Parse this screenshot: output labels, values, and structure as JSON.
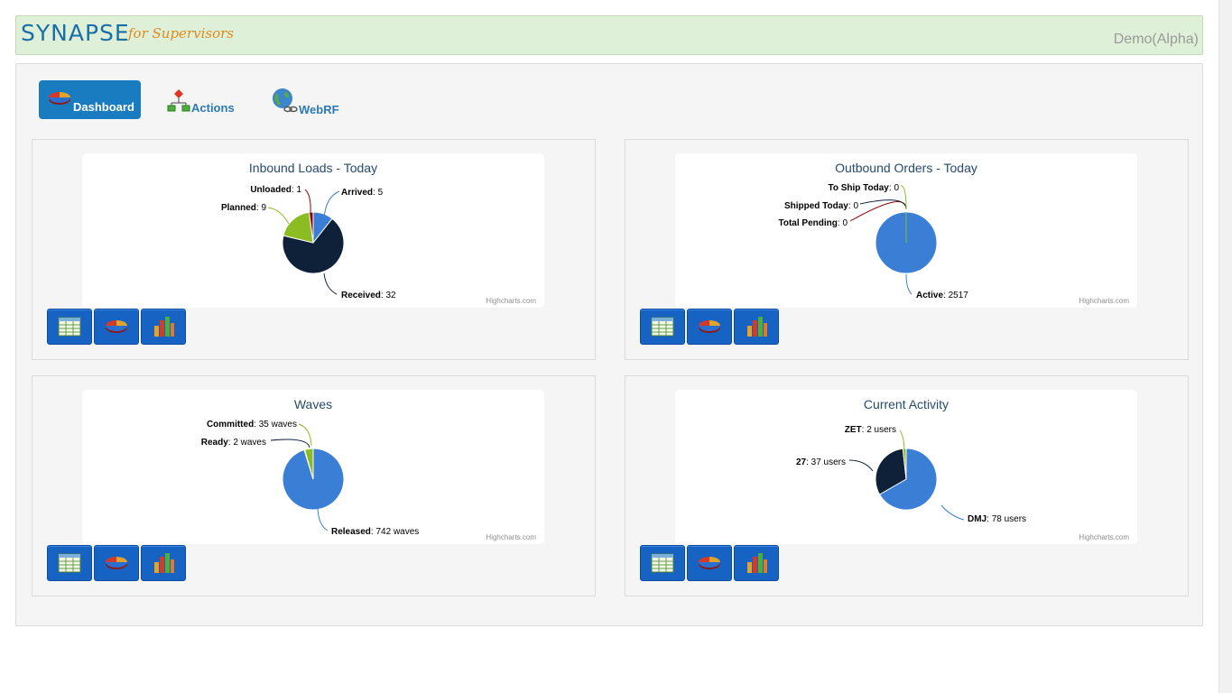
{
  "app": {
    "logo": "SYNAPSE",
    "tagline": "for Supervisors",
    "environment": "Demo(Alpha)"
  },
  "nav": {
    "items": [
      {
        "label": "Dashboard",
        "icon": "pie-chart-icon",
        "active": true
      },
      {
        "label": "Actions",
        "icon": "hierarchy-icon",
        "active": false
      },
      {
        "label": "WebRF",
        "icon": "globe-link-icon",
        "active": false
      }
    ]
  },
  "panels": [
    {
      "credit": "Highcharts.com",
      "buttons": [
        "table-view",
        "pie-view",
        "bar-view"
      ]
    },
    {
      "credit": "Highcharts.com",
      "buttons": [
        "table-view",
        "pie-view",
        "bar-view"
      ]
    },
    {
      "credit": "Highcharts.com",
      "buttons": [
        "table-view",
        "pie-view",
        "bar-view"
      ]
    },
    {
      "credit": "Highcharts.com",
      "buttons": [
        "table-view",
        "pie-view",
        "bar-view"
      ]
    }
  ],
  "chart_data": [
    {
      "type": "pie",
      "title": "Inbound Loads - Today",
      "slices": [
        {
          "name": "Arrived",
          "value": 5,
          "display": "5",
          "color": "#3a7fd5"
        },
        {
          "name": "Received",
          "value": 32,
          "display": "32",
          "color": "#0f2039"
        },
        {
          "name": "Planned",
          "value": 9,
          "display": "9",
          "color": "#8bbc21"
        },
        {
          "name": "Unloaded",
          "value": 1,
          "display": "1",
          "color": "#910000"
        }
      ]
    },
    {
      "type": "pie",
      "title": "Outbound Orders - Today",
      "slices": [
        {
          "name": "Active",
          "value": 2517,
          "display": "2517",
          "color": "#3a7fd5"
        },
        {
          "name": "Total Pending",
          "value": 0,
          "display": "0",
          "color": "#910000"
        },
        {
          "name": "Shipped Today",
          "value": 0,
          "display": "0",
          "color": "#0f2039"
        },
        {
          "name": "To Ship Today",
          "value": 0,
          "display": "0",
          "color": "#8bbc21"
        }
      ]
    },
    {
      "type": "pie",
      "title": "Waves",
      "slices": [
        {
          "name": "Released",
          "value": 742,
          "display": "742 waves",
          "color": "#3a7fd5"
        },
        {
          "name": "Ready",
          "value": 2,
          "display": "2 waves",
          "color": "#0f2039"
        },
        {
          "name": "Committed",
          "value": 35,
          "display": "35 waves",
          "color": "#8bbc21"
        }
      ]
    },
    {
      "type": "pie",
      "title": "Current Activity",
      "slices": [
        {
          "name": "DMJ",
          "value": 78,
          "display": "78 users",
          "color": "#3a7fd5"
        },
        {
          "name": "27",
          "value": 37,
          "display": "37 users",
          "color": "#0f2039"
        },
        {
          "name": "ZET",
          "value": 2,
          "display": "2 users",
          "color": "#8bbc21"
        }
      ]
    }
  ]
}
